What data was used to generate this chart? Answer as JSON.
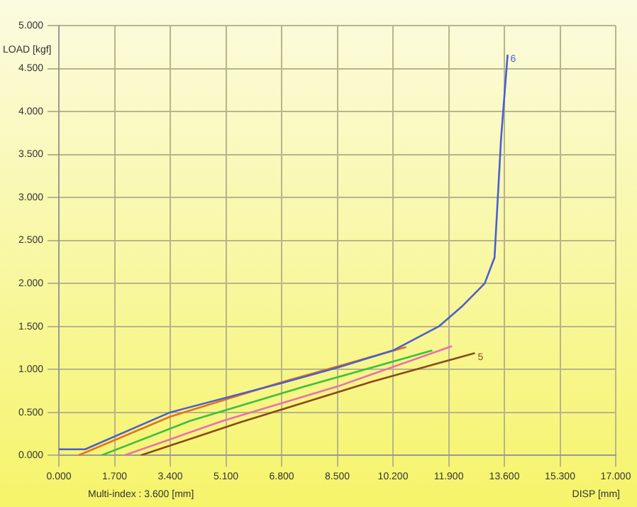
{
  "chart_data": {
    "type": "line",
    "xlabel": "DISP [mm]",
    "ylabel": "LOAD [kgf]",
    "annotations": [
      "Multi-index : 3.600 [mm]"
    ],
    "xlim": [
      0,
      17
    ],
    "ylim": [
      0,
      5
    ],
    "xticks": [
      {
        "value": 0,
        "label": "0.000"
      },
      {
        "value": 1.7,
        "label": "1.700"
      },
      {
        "value": 3.4,
        "label": "3.400"
      },
      {
        "value": 5.1,
        "label": "5.100"
      },
      {
        "value": 6.8,
        "label": "6.800"
      },
      {
        "value": 8.5,
        "label": "8.500"
      },
      {
        "value": 10.2,
        "label": "10.200"
      },
      {
        "value": 11.9,
        "label": "11.900"
      },
      {
        "value": 13.6,
        "label": "13.600"
      },
      {
        "value": 15.3,
        "label": "15.300"
      },
      {
        "value": 17,
        "label": "17.000"
      }
    ],
    "yticks": [
      {
        "value": 0,
        "label": "0.000"
      },
      {
        "value": 0.5,
        "label": "0.500"
      },
      {
        "value": 1,
        "label": "1.000"
      },
      {
        "value": 1.5,
        "label": "1.500"
      },
      {
        "value": 2,
        "label": "2.000"
      },
      {
        "value": 2.5,
        "label": "2.500"
      },
      {
        "value": 3,
        "label": "3.000"
      },
      {
        "value": 3.5,
        "label": "3.500"
      },
      {
        "value": 4,
        "label": "4.000"
      },
      {
        "value": 4.5,
        "label": "4.500"
      },
      {
        "value": 5,
        "label": "5.000"
      }
    ],
    "grid": true,
    "legend": false,
    "marker": "none",
    "line_style": "solid",
    "series": [
      {
        "name": "6",
        "color": "#4a5fd0",
        "x": [
          0,
          0.8,
          3.4,
          6.8,
          8.5,
          10.2,
          11.6,
          12.3,
          13.0,
          13.3,
          13.5,
          13.7
        ],
        "values": [
          0.07,
          0.07,
          0.5,
          0.84,
          1.02,
          1.22,
          1.5,
          1.73,
          2.0,
          2.3,
          3.69,
          4.66
        ]
      },
      {
        "color": "#e8701c",
        "x": [
          0.6,
          3.4,
          6.8,
          10.6
        ],
        "values": [
          0,
          0.45,
          0.85,
          1.26
        ]
      },
      {
        "color": "#3cc03c",
        "x": [
          1.3,
          4.0,
          7.5,
          11.4
        ],
        "values": [
          0,
          0.4,
          0.8,
          1.22
        ]
      },
      {
        "color": "#e870b0",
        "x": [
          2.0,
          5.0,
          8.5,
          12.0
        ],
        "values": [
          0,
          0.4,
          0.8,
          1.27
        ]
      },
      {
        "name": "5",
        "color": "#8a4a1a",
        "x": [
          2.5,
          5.5,
          9.5,
          12.7
        ],
        "values": [
          0,
          0.38,
          0.85,
          1.19
        ]
      }
    ]
  }
}
